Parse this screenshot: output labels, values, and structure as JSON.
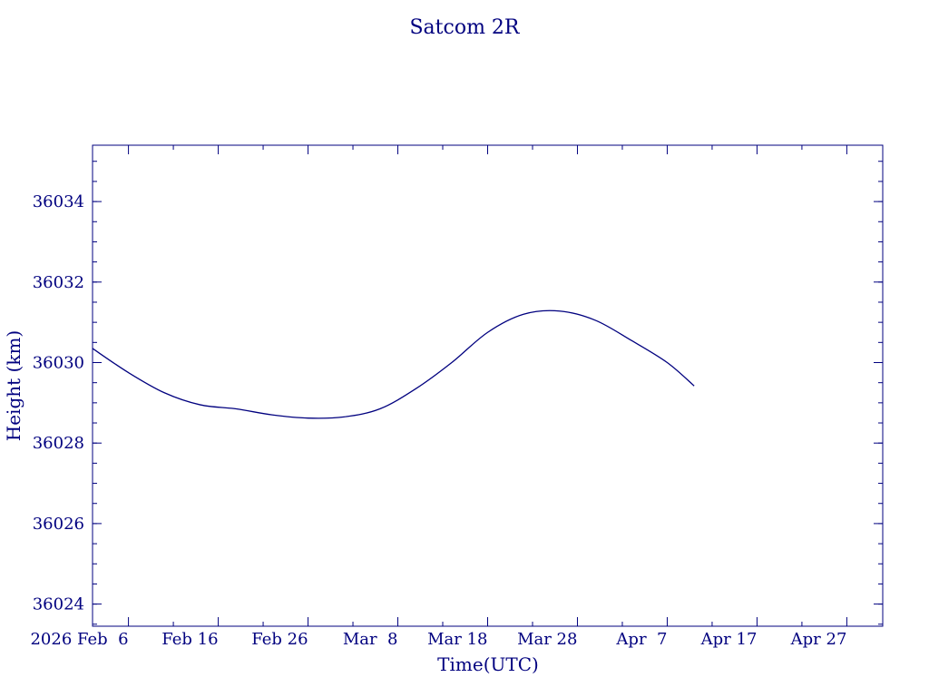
{
  "colors": {
    "ink": "#00007f",
    "background": "#ffffff"
  },
  "chart_data": {
    "type": "line",
    "title": "Satcom 2R",
    "xlabel": "Time(UTC)",
    "ylabel": "Height (km)",
    "x_axis": {
      "kind": "date",
      "range": [
        "2026-02-02",
        "2026-05-01"
      ],
      "major_ticks": [
        {
          "date": "2026-02-06",
          "label": "2026 Feb  6"
        },
        {
          "date": "2026-02-16",
          "label": "Feb 16"
        },
        {
          "date": "2026-02-26",
          "label": "Feb 26"
        },
        {
          "date": "2026-03-08",
          "label": "Mar  8"
        },
        {
          "date": "2026-03-18",
          "label": "Mar 18"
        },
        {
          "date": "2026-03-28",
          "label": "Mar 28"
        },
        {
          "date": "2026-04-07",
          "label": "Apr  7"
        },
        {
          "date": "2026-04-17",
          "label": "Apr 17"
        },
        {
          "date": "2026-04-27",
          "label": "Apr 27"
        }
      ]
    },
    "ylim": [
      36023.45,
      36035.4
    ],
    "yticks": [
      36024,
      36026,
      36028,
      36030,
      36032,
      36034
    ],
    "grid": false,
    "legend": "none",
    "series": [
      {
        "x": [
          "2026-02-02",
          "2026-02-06",
          "2026-02-10",
          "2026-02-14",
          "2026-02-18",
          "2026-02-22",
          "2026-02-26",
          "2026-03-02",
          "2026-03-06",
          "2026-03-10",
          "2026-03-14",
          "2026-03-18",
          "2026-03-22",
          "2026-03-26",
          "2026-03-30",
          "2026-04-03",
          "2026-04-07",
          "2026-04-10"
        ],
        "y": [
          36030.35,
          36029.75,
          36029.25,
          36028.95,
          36028.85,
          36028.7,
          36028.62,
          36028.65,
          36028.85,
          36029.35,
          36030.0,
          36030.75,
          36031.2,
          36031.28,
          36031.05,
          36030.55,
          36030.0,
          36029.42
        ]
      }
    ]
  }
}
